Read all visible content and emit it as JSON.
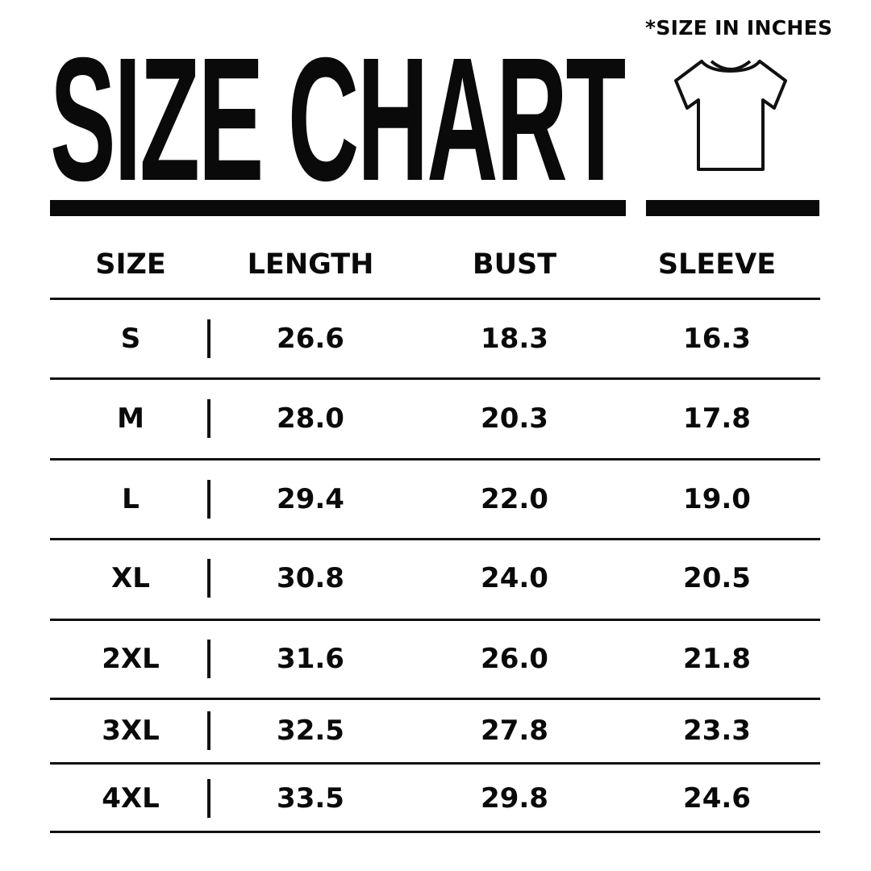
{
  "title": "SIZE CHART",
  "note": "*SIZE IN INCHES",
  "icon": "t-shirt-icon",
  "table": {
    "headers": [
      "SIZE",
      "LENGTH",
      "BUST",
      "SLEEVE"
    ],
    "rows": [
      [
        "S",
        "26.6",
        "18.3",
        "16.3"
      ],
      [
        "M",
        "28.0",
        "20.3",
        "17.8"
      ],
      [
        "L",
        "29.4",
        "22.0",
        "19.0"
      ],
      [
        "XL",
        "30.8",
        "24.0",
        "20.5"
      ],
      [
        "2XL",
        "31.6",
        "26.0",
        "21.8"
      ],
      [
        "3XL",
        "32.5",
        "27.8",
        "23.3"
      ],
      [
        "4XL",
        "33.5",
        "29.8",
        "24.6"
      ]
    ]
  }
}
